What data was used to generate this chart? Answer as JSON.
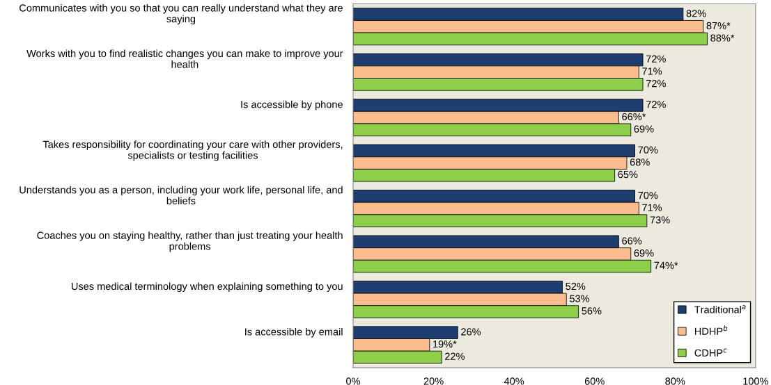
{
  "chart_data": {
    "type": "bar",
    "orientation": "horizontal",
    "categories": [
      "Communicates with you so that you can really understand what they are saying",
      "Works with you to find realistic changes you can make to improve your health",
      "Is accessible by phone",
      "Takes responsibility for coordinating your care with other providers, specialists or testing facilities",
      "Understands you as a person, including your work life, personal life, and beliefs",
      "Coaches you on staying healthy, rather than just treating your health problems",
      "Uses medical terminology when explaining something to you",
      "Is accessible by email"
    ],
    "series": [
      {
        "name": "Traditional$^{a}$",
        "color": "#1f3e70",
        "values": [
          82,
          72,
          72,
          70,
          70,
          66,
          52,
          26
        ],
        "value_labels": [
          "82%",
          "72%",
          "72%",
          "70%",
          "70%",
          "66%",
          "52%",
          "26%"
        ]
      },
      {
        "name": "HDHP$^{b}$",
        "color": "#fbbd8e",
        "values": [
          87,
          71,
          66,
          68,
          71,
          69,
          53,
          19
        ],
        "value_labels": [
          "87%*",
          "71%",
          "66%*",
          "68%",
          "71%",
          "69%",
          "53%",
          "19%*"
        ]
      },
      {
        "name": "CDHP$^{c}$",
        "color": "#8dcf4b",
        "values": [
          88,
          72,
          69,
          65,
          73,
          74,
          56,
          22
        ],
        "value_labels": [
          "88%*",
          "72%",
          "69%",
          "65%",
          "73%",
          "74%*",
          "56%",
          "22%"
        ]
      }
    ],
    "xlim": [
      0,
      100
    ],
    "xticks": [
      {
        "value": 0,
        "label": "0%"
      },
      {
        "value": 20,
        "label": "20%"
      },
      {
        "value": 40,
        "label": "40%"
      },
      {
        "value": 60,
        "label": "60%"
      },
      {
        "value": 80,
        "label": "80%"
      },
      {
        "value": 100,
        "label": "100%"
      }
    ],
    "legend": "bottom right",
    "grid": false
  }
}
